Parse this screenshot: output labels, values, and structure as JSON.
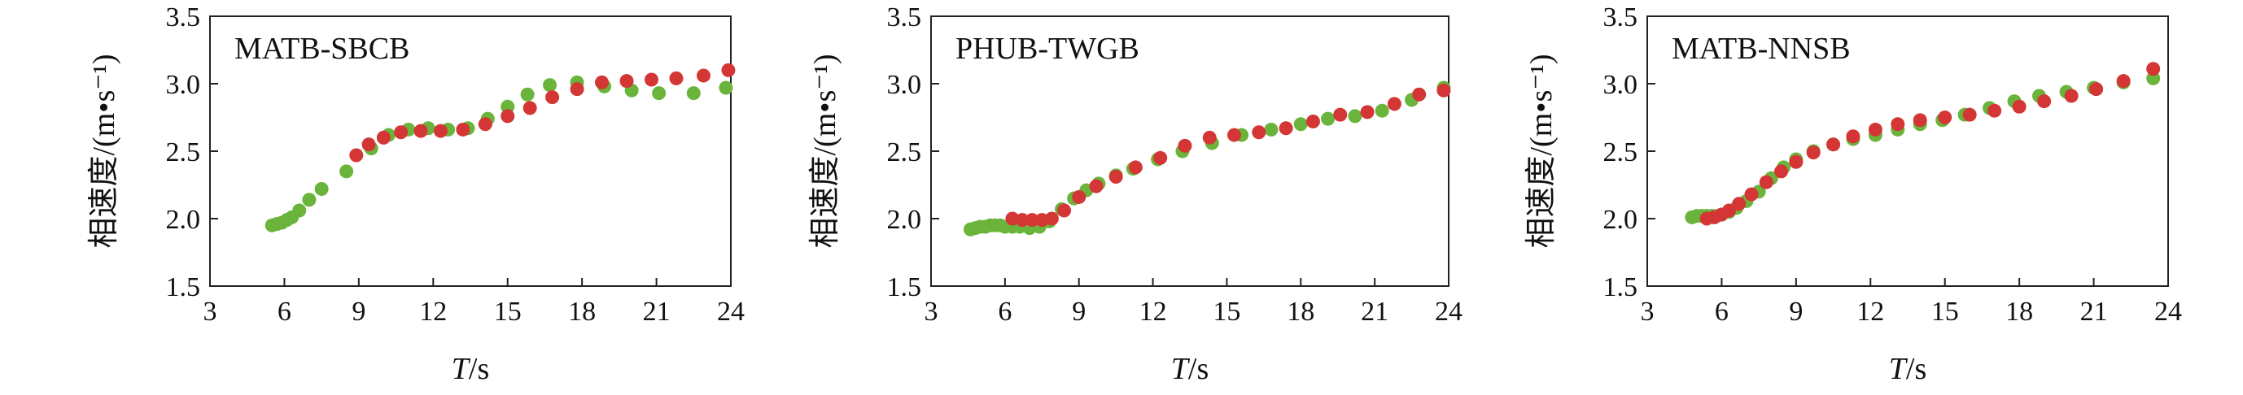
{
  "colors": {
    "green": "#6ab43c",
    "red": "#d33634",
    "axis": "#222222"
  },
  "chart_data": [
    {
      "type": "scatter",
      "title": "MATB-SBCB",
      "xlabel_var": "T",
      "xlabel_unit": "/s",
      "ylabel_main": "相速度/",
      "ylabel_unit": "(m•s⁻¹)",
      "xlim": [
        3,
        24
      ],
      "ylim": [
        1.5,
        3.5
      ],
      "xticks": [
        3,
        6,
        9,
        12,
        15,
        18,
        21,
        24
      ],
      "yticks": [
        1.5,
        2.0,
        2.5,
        3.0,
        3.5
      ],
      "xtick_labels": [
        "3",
        "6",
        "9",
        "12",
        "15",
        "18",
        "21",
        "24"
      ],
      "ytick_labels": [
        "1.5",
        "2.0",
        "2.5",
        "3.0",
        "3.5"
      ],
      "series": [
        {
          "color": "green",
          "x": [
            5.5,
            5.7,
            5.9,
            6.1,
            6.3,
            6.6,
            7.0,
            7.5,
            8.5,
            9.5,
            10.2,
            11.0,
            11.8,
            12.6,
            13.4,
            14.2,
            15.0,
            15.8,
            16.7,
            17.8,
            18.9,
            20.0,
            21.1,
            22.5,
            23.8
          ],
          "y": [
            1.95,
            1.96,
            1.97,
            1.99,
            2.01,
            2.06,
            2.14,
            2.22,
            2.35,
            2.52,
            2.62,
            2.66,
            2.67,
            2.66,
            2.67,
            2.74,
            2.83,
            2.92,
            2.99,
            3.01,
            2.98,
            2.95,
            2.93,
            2.93,
            2.97
          ]
        },
        {
          "color": "red",
          "x": [
            8.9,
            9.4,
            10.0,
            10.7,
            11.5,
            12.3,
            13.2,
            14.1,
            15.0,
            15.9,
            16.8,
            17.8,
            18.8,
            19.8,
            20.8,
            21.8,
            22.9,
            23.9
          ],
          "y": [
            2.47,
            2.55,
            2.6,
            2.64,
            2.65,
            2.65,
            2.66,
            2.7,
            2.76,
            2.82,
            2.9,
            2.96,
            3.01,
            3.02,
            3.03,
            3.04,
            3.06,
            3.1
          ]
        }
      ]
    },
    {
      "type": "scatter",
      "title": "PHUB-TWGB",
      "xlabel_var": "T",
      "xlabel_unit": "/s",
      "ylabel_main": "相速度/",
      "ylabel_unit": "(m•s⁻¹)",
      "xlim": [
        3,
        24
      ],
      "ylim": [
        1.5,
        3.5
      ],
      "xticks": [
        3,
        6,
        9,
        12,
        15,
        18,
        21,
        24
      ],
      "yticks": [
        1.5,
        2.0,
        2.5,
        3.0,
        3.5
      ],
      "xtick_labels": [
        "3",
        "6",
        "9",
        "12",
        "15",
        "18",
        "21",
        "24"
      ],
      "ytick_labels": [
        "1.5",
        "2.0",
        "2.5",
        "3.0",
        "3.5"
      ],
      "series": [
        {
          "color": "green",
          "x": [
            4.6,
            4.8,
            5.0,
            5.2,
            5.4,
            5.6,
            5.8,
            6.0,
            6.3,
            6.6,
            7.0,
            7.4,
            7.8,
            8.3,
            8.8,
            9.3,
            9.8,
            10.5,
            11.2,
            12.2,
            13.2,
            14.4,
            15.6,
            16.8,
            18.0,
            19.1,
            20.2,
            21.3,
            22.5,
            23.8
          ],
          "y": [
            1.92,
            1.93,
            1.94,
            1.94,
            1.95,
            1.95,
            1.95,
            1.94,
            1.94,
            1.94,
            1.93,
            1.94,
            1.98,
            2.07,
            2.15,
            2.21,
            2.26,
            2.32,
            2.37,
            2.44,
            2.5,
            2.56,
            2.62,
            2.66,
            2.7,
            2.74,
            2.76,
            2.8,
            2.88,
            2.97
          ]
        },
        {
          "color": "red",
          "x": [
            6.3,
            6.7,
            7.1,
            7.5,
            7.9,
            8.4,
            9.0,
            9.7,
            10.5,
            11.3,
            12.3,
            13.3,
            14.3,
            15.3,
            16.3,
            17.4,
            18.5,
            19.6,
            20.7,
            21.8,
            22.8,
            23.8
          ],
          "y": [
            2.0,
            1.99,
            1.99,
            1.99,
            2.0,
            2.06,
            2.16,
            2.24,
            2.31,
            2.38,
            2.45,
            2.54,
            2.6,
            2.62,
            2.64,
            2.67,
            2.72,
            2.77,
            2.79,
            2.85,
            2.92,
            2.95
          ]
        }
      ]
    },
    {
      "type": "scatter",
      "title": "MATB-NNSB",
      "xlabel_var": "T",
      "xlabel_unit": "/s",
      "ylabel_main": "相速度/",
      "ylabel_unit": "(m•s⁻¹)",
      "xlim": [
        3,
        24
      ],
      "ylim": [
        1.5,
        3.5
      ],
      "xticks": [
        3,
        6,
        9,
        12,
        15,
        18,
        21,
        24
      ],
      "yticks": [
        1.5,
        2.0,
        2.5,
        3.0,
        3.5
      ],
      "xtick_labels": [
        "3",
        "6",
        "9",
        "12",
        "15",
        "18",
        "21",
        "24"
      ],
      "ytick_labels": [
        "1.5",
        "2.0",
        "2.5",
        "3.0",
        "3.5"
      ],
      "series": [
        {
          "color": "green",
          "x": [
            4.8,
            5.0,
            5.2,
            5.4,
            5.6,
            5.8,
            6.0,
            6.3,
            6.6,
            7.0,
            7.5,
            8.0,
            8.5,
            9.0,
            9.7,
            10.5,
            11.3,
            12.2,
            13.1,
            14.0,
            14.9,
            15.8,
            16.8,
            17.8,
            18.8,
            19.9,
            21.0,
            22.2,
            23.4
          ],
          "y": [
            2.01,
            2.02,
            2.02,
            2.02,
            2.02,
            2.02,
            2.03,
            2.05,
            2.08,
            2.13,
            2.2,
            2.3,
            2.38,
            2.44,
            2.5,
            2.55,
            2.59,
            2.62,
            2.66,
            2.7,
            2.73,
            2.77,
            2.82,
            2.87,
            2.91,
            2.94,
            2.97,
            3.01,
            3.04
          ]
        },
        {
          "color": "red",
          "x": [
            5.4,
            5.7,
            6.0,
            6.3,
            6.7,
            7.2,
            7.8,
            8.4,
            9.0,
            9.7,
            10.5,
            11.3,
            12.2,
            13.1,
            14.0,
            15.0,
            16.0,
            17.0,
            18.0,
            19.0,
            20.1,
            21.1,
            22.2,
            23.4
          ],
          "y": [
            2.0,
            2.01,
            2.03,
            2.06,
            2.11,
            2.18,
            2.27,
            2.35,
            2.42,
            2.49,
            2.55,
            2.61,
            2.66,
            2.7,
            2.73,
            2.75,
            2.77,
            2.8,
            2.83,
            2.87,
            2.91,
            2.96,
            3.02,
            3.11
          ]
        }
      ]
    }
  ]
}
